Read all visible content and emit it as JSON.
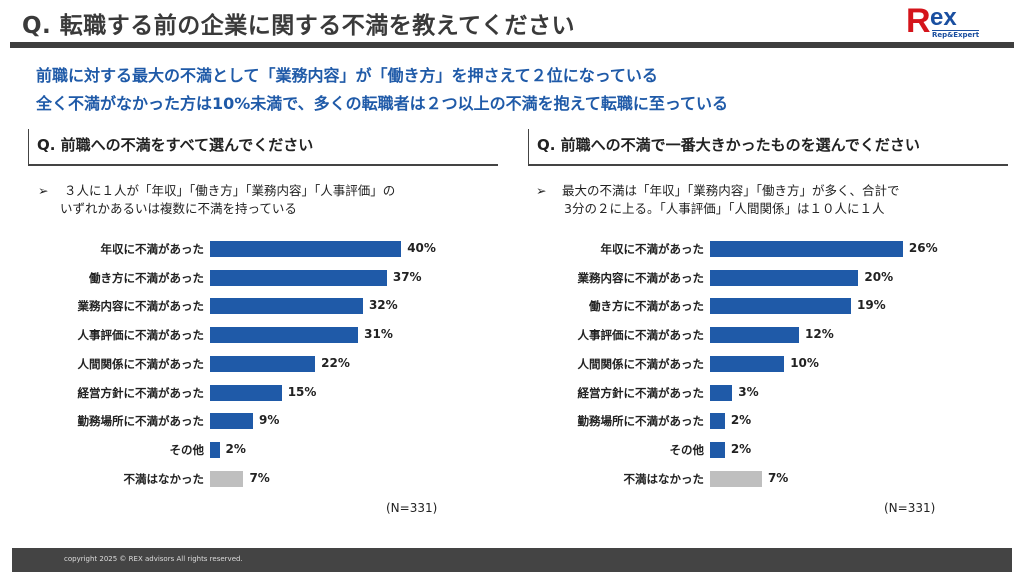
{
  "title": "Q. 転職する前の企業に関する不満を教えてください",
  "logo": {
    "text": "Rex",
    "sub": "Rep&Expert"
  },
  "headlines": [
    "前職に対する最大の不満として「業務内容」が「働き方」を押さえて２位になっている",
    "全く不満がなかった方は10%未満で、多くの転職者は２つ以上の不満を抱えて転職に至っている"
  ],
  "colors": {
    "bar": "#1f5aa8",
    "none_bar": "#bfbfbf",
    "headline": "#1f5aa8"
  },
  "panels": [
    {
      "question": "Q. 前職への不満をすべて選んでください",
      "bullet_icon": "➢",
      "bullet": [
        "３人に１人が「年収」「働き方」「業務内容」「人事評価」の",
        "いずれかあるいは複数に不満を持っている"
      ]
    },
    {
      "question": "Q. 前職への不満で一番大きかったものを選んでください",
      "bullet_icon": "➢",
      "bullet": [
        "最大の不満は「年収」「業務内容」「働き方」が多く、合計で",
        "3分の２に上る。「人事評価」「人間関係」は１０人に１人"
      ]
    }
  ],
  "chart_data": [
    {
      "type": "bar",
      "orientation": "horizontal",
      "note": "(N=331)",
      "categories": [
        "年収に不満があった",
        "働き方に不満があった",
        "業務内容に不満があった",
        "人事評価に不満があった",
        "人間関係に不満があった",
        "経営方針に不満があった",
        "勤務場所に不満があった",
        "その他",
        "不満はなかった"
      ],
      "values": [
        40,
        37,
        32,
        31,
        22,
        15,
        9,
        2,
        7
      ],
      "labels": [
        "40%",
        "37%",
        "32%",
        "31%",
        "22%",
        "15%",
        "9%",
        "2%",
        "7%"
      ],
      "unit": "%"
    },
    {
      "type": "bar",
      "orientation": "horizontal",
      "note": "(N=331)",
      "categories": [
        "年収に不満があった",
        "業務内容に不満があった",
        "働き方に不満があった",
        "人事評価に不満があった",
        "人間関係に不満があった",
        "経営方針に不満があった",
        "勤務場所に不満があった",
        "その他",
        "不満はなかった"
      ],
      "values": [
        26,
        20,
        19,
        12,
        10,
        3,
        2,
        2,
        7
      ],
      "labels": [
        "26%",
        "20%",
        "19%",
        "12%",
        "10%",
        "3%",
        "2%",
        "2%",
        "7%"
      ],
      "unit": "%"
    }
  ],
  "footer": "copyright 2025 © REX advisors All rights reserved."
}
